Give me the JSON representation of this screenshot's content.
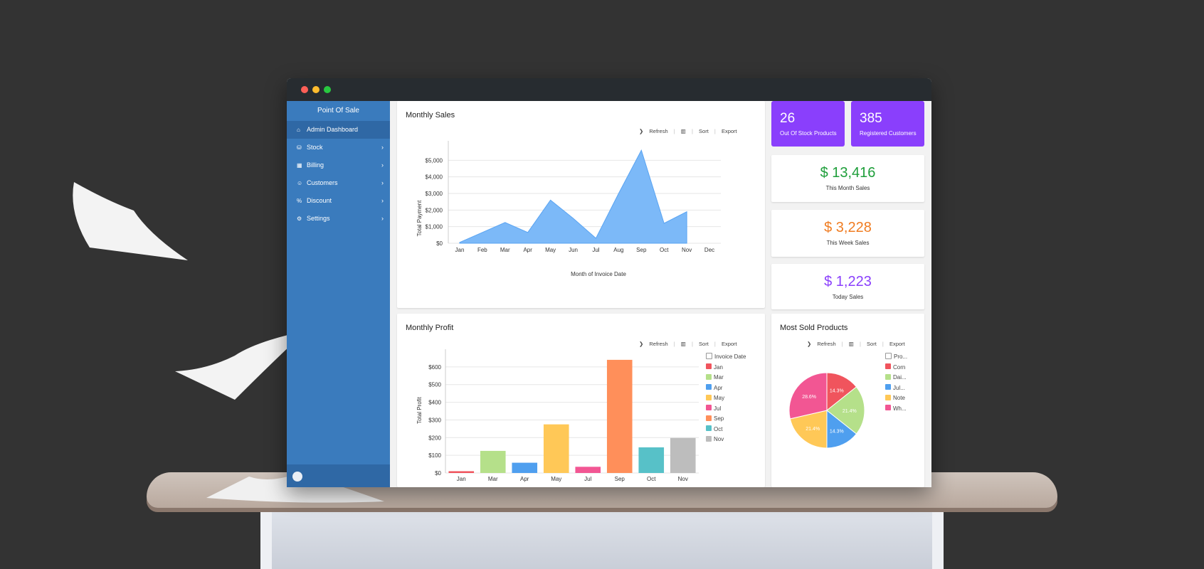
{
  "app": {
    "title": "Point Of Sale"
  },
  "sidebar": {
    "items": [
      {
        "label": "Admin Dashboard",
        "icon": "home-icon"
      },
      {
        "label": "Stock",
        "icon": "stock-icon"
      },
      {
        "label": "Billing",
        "icon": "calculator-icon"
      },
      {
        "label": "Customers",
        "icon": "users-icon"
      },
      {
        "label": "Discount",
        "icon": "percent-icon"
      },
      {
        "label": "Settings",
        "icon": "gear-icon"
      }
    ]
  },
  "toolbar": {
    "refresh": "Refresh",
    "sort": "Sort",
    "export": "Export"
  },
  "tiles": {
    "out_of_stock": {
      "value": "26",
      "label": "Out Of Stock Products"
    },
    "registered_customers": {
      "value": "385",
      "label": "Registered Customers"
    },
    "month_sales": {
      "value": "$ 13,416",
      "label": "This Month Sales",
      "color": "#1e9e3a"
    },
    "week_sales": {
      "value": "$ 3,228",
      "label": "This Week Sales",
      "color": "#f07c21"
    },
    "today_sales": {
      "value": "$ 1,223",
      "label": "Today Sales",
      "color": "#8a3ffc"
    }
  },
  "colors": {
    "sidebar": "#3a7bbd",
    "accent": "#8a3ffc",
    "area": "#7cb9f8"
  },
  "chart_data": [
    {
      "type": "area",
      "title": "Monthly Sales",
      "xlabel": "Month of Invoice Date",
      "ylabel": "Total Payment",
      "categories": [
        "Jan",
        "Feb",
        "Mar",
        "Apr",
        "May",
        "Jun",
        "Jul",
        "Aug",
        "Sep",
        "Oct",
        "Nov",
        "Dec"
      ],
      "values": [
        50,
        650,
        1250,
        650,
        2600,
        1500,
        300,
        3000,
        5600,
        1200,
        1900,
        null
      ],
      "yticks": [
        "$0",
        "$1,000",
        "$2,000",
        "$3,000",
        "$4,000",
        "$5,000"
      ],
      "ylim": [
        0,
        6000
      ],
      "grid": true
    },
    {
      "type": "bar",
      "title": "Monthly Profit",
      "ylabel": "Total Profit",
      "categories": [
        "Jan",
        "Mar",
        "Apr",
        "May",
        "Jul",
        "Sep",
        "Oct",
        "Nov"
      ],
      "values": [
        10,
        125,
        58,
        275,
        35,
        640,
        145,
        198
      ],
      "colors": [
        "#f0545d",
        "#b5e08a",
        "#4f9fef",
        "#ffc857",
        "#f25693",
        "#ff8f5a",
        "#57c1c8",
        "#bdbdbd"
      ],
      "yticks": [
        "$0",
        "$100",
        "$200",
        "$300",
        "$400",
        "$500",
        "$600"
      ],
      "ylim": [
        0,
        700
      ],
      "legend_title": "Invoice Date",
      "legend": [
        "Jan",
        "Mar",
        "Apr",
        "May",
        "Jul",
        "Sep",
        "Oct",
        "Nov"
      ],
      "legend_position": "right",
      "grid": true
    },
    {
      "type": "pie",
      "title": "Most Sold Products",
      "legend_title": "Pro...",
      "legend": [
        "Corn",
        "Dai...",
        "Jul...",
        "Note",
        "Wh..."
      ],
      "values": [
        14.3,
        21.4,
        14.3,
        21.4,
        28.6
      ],
      "labels": [
        "14.3%",
        "21.4%",
        "14.3%",
        "21.4%",
        "28.6%"
      ],
      "colors": [
        "#f0545d",
        "#b5e08a",
        "#4f9fef",
        "#ffc857",
        "#f25693"
      ],
      "legend_position": "right"
    }
  ]
}
